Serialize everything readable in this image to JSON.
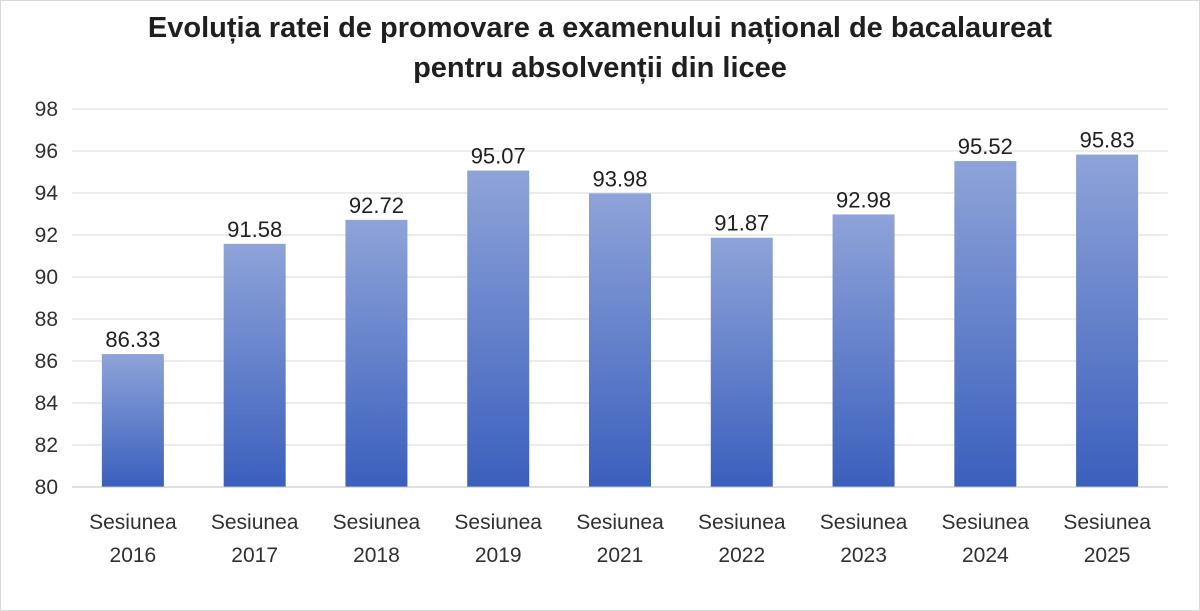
{
  "chart_data": {
    "type": "bar",
    "title_line1": "Evoluția ratei de promovare a examenului național de bacalaureat",
    "title_line2": "pentru absolvenții din licee",
    "categories": [
      [
        "Sesiunea",
        "2016"
      ],
      [
        "Sesiunea",
        "2017"
      ],
      [
        "Sesiunea",
        "2018"
      ],
      [
        "Sesiunea",
        "2019"
      ],
      [
        "Sesiunea",
        "2021"
      ],
      [
        "Sesiunea",
        "2022"
      ],
      [
        "Sesiunea",
        "2023"
      ],
      [
        "Sesiunea",
        "2024"
      ],
      [
        "Sesiunea",
        "2025"
      ]
    ],
    "values": [
      86.33,
      91.58,
      92.72,
      95.07,
      93.98,
      91.87,
      92.98,
      95.52,
      95.83
    ],
    "value_labels": [
      "86.33",
      "91.58",
      "92.72",
      "95.07",
      "93.98",
      "91.87",
      "92.98",
      "95.52",
      "95.83"
    ],
    "yticks": [
      "80",
      "82",
      "84",
      "86",
      "88",
      "90",
      "92",
      "94",
      "96",
      "98"
    ],
    "ylim": [
      80,
      98
    ],
    "grid": true,
    "bar_color_top": "#8ea3d8",
    "bar_color_bottom": "#3a5fbd",
    "gridline_color": "#d9d9d9"
  }
}
